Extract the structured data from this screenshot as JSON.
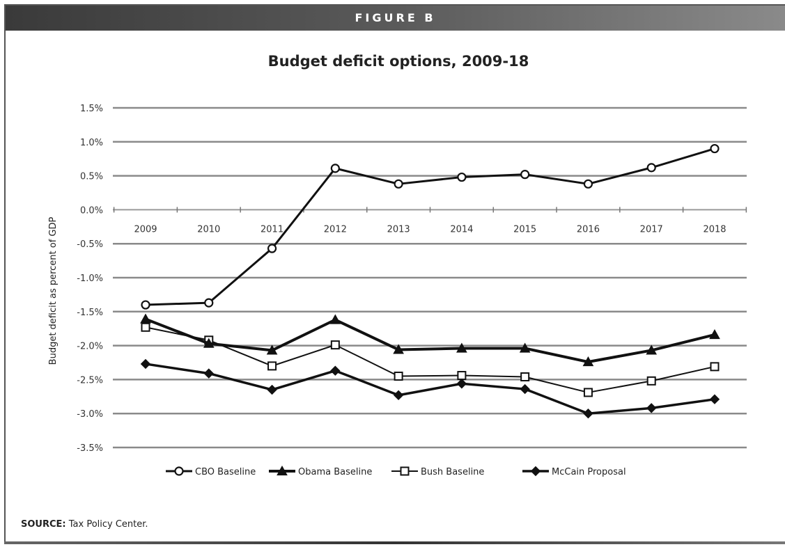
{
  "header": {
    "label": "FIGURE B"
  },
  "chart_data": {
    "type": "line",
    "title": "Budget deficit options, 2009-18",
    "xlabel": "",
    "ylabel": "Budget deficit as percent of GDP",
    "x": [
      "2009",
      "2010",
      "2011",
      "2012",
      "2013",
      "2014",
      "2015",
      "2016",
      "2017",
      "2018"
    ],
    "ylim": [
      -3.5,
      1.5
    ],
    "yticks": [
      {
        "value": 1.5,
        "label": "1.5%"
      },
      {
        "value": 1.0,
        "label": "1.0%"
      },
      {
        "value": 0.5,
        "label": "0.5%"
      },
      {
        "value": 0.0,
        "label": "0.0%"
      },
      {
        "value": -0.5,
        "label": "-0.5%"
      },
      {
        "value": -1.0,
        "label": "-1.0%"
      },
      {
        "value": -1.5,
        "label": "-1.5%"
      },
      {
        "value": -2.0,
        "label": "-2.0%"
      },
      {
        "value": -2.5,
        "label": "-2.5%"
      },
      {
        "value": -3.0,
        "label": "-3.0%"
      },
      {
        "value": -3.5,
        "label": "-3.5%"
      }
    ],
    "grid": true,
    "legend_position": "bottom",
    "series": [
      {
        "name": "CBO Baseline",
        "marker": "open-circle",
        "stroke_width": 3,
        "values": [
          -1.4,
          -1.37,
          -0.57,
          0.61,
          0.38,
          0.48,
          0.52,
          0.38,
          0.62,
          0.9
        ]
      },
      {
        "name": "Obama Baseline",
        "marker": "filled-triangle",
        "stroke_width": 4,
        "values": [
          -1.61,
          -1.97,
          -2.07,
          -1.62,
          -2.06,
          -2.04,
          -2.04,
          -2.24,
          -2.07,
          -1.84
        ]
      },
      {
        "name": "Bush Baseline",
        "marker": "open-square",
        "stroke_width": 2,
        "values": [
          -1.73,
          -1.92,
          -2.3,
          -1.99,
          -2.45,
          -2.44,
          -2.46,
          -2.69,
          -2.52,
          -2.31
        ]
      },
      {
        "name": "McCain Proposal",
        "marker": "filled-diamond",
        "stroke_width": 3.5,
        "values": [
          -2.27,
          -2.41,
          -2.65,
          -2.37,
          -2.73,
          -2.56,
          -2.64,
          -3.0,
          -2.92,
          -2.79
        ]
      }
    ]
  },
  "source": {
    "label": "SOURCE:",
    "text": "Tax Policy Center."
  }
}
